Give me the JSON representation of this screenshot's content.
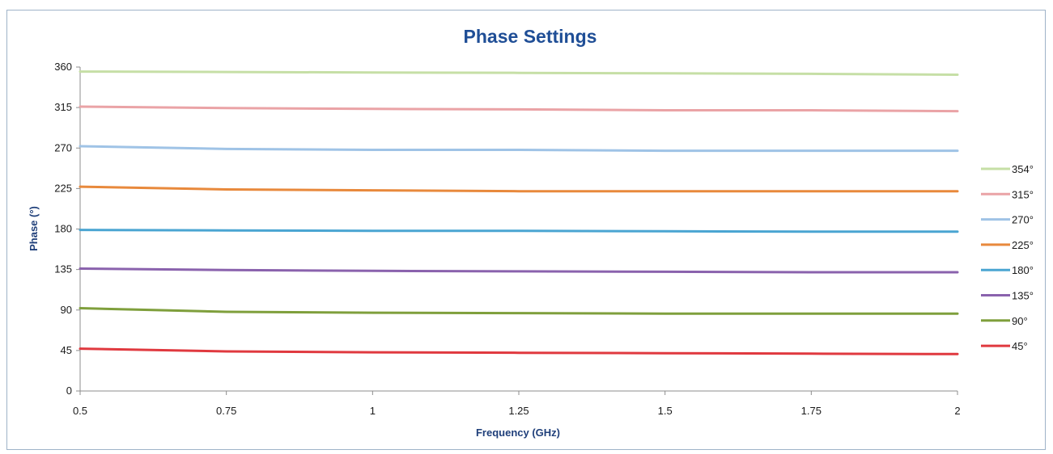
{
  "chart_data": {
    "type": "line",
    "title": "Phase Settings",
    "xlabel": "Frequency (GHz)",
    "ylabel": "Phase (°)",
    "xlim": [
      0.5,
      2
    ],
    "ylim": [
      0,
      360
    ],
    "x_ticks": [
      "0.5",
      "0.75",
      "1",
      "1.25",
      "1.5",
      "1.75",
      "2"
    ],
    "y_ticks": [
      "0",
      "45",
      "90",
      "135",
      "180",
      "225",
      "270",
      "315",
      "360"
    ],
    "grid": false,
    "legend_position": "right",
    "x": [
      0.5,
      0.75,
      1.0,
      1.25,
      1.5,
      1.75,
      2.0
    ],
    "series": [
      {
        "name": "354°",
        "color": "#c6dfa6",
        "values": [
          355,
          354.5,
          354,
          353.5,
          353,
          352.5,
          351.5
        ]
      },
      {
        "name": "315°",
        "color": "#eaa3a6",
        "values": [
          316,
          314.5,
          313.5,
          313,
          312,
          312,
          311
        ]
      },
      {
        "name": "270°",
        "color": "#9fc3e6",
        "values": [
          272,
          269,
          268,
          268,
          267,
          267,
          267
        ]
      },
      {
        "name": "225°",
        "color": "#e8893c",
        "values": [
          227,
          224,
          223,
          222,
          222,
          222,
          222
        ]
      },
      {
        "name": "180°",
        "color": "#4aa5d2",
        "values": [
          179,
          178.5,
          178,
          178,
          177.5,
          177,
          177
        ]
      },
      {
        "name": "135°",
        "color": "#8a62ad",
        "values": [
          136,
          134.5,
          133.5,
          133,
          132.5,
          132,
          132
        ]
      },
      {
        "name": "90°",
        "color": "#7f9f3c",
        "values": [
          92,
          88,
          87,
          86.5,
          86,
          86,
          86
        ]
      },
      {
        "name": "45°",
        "color": "#e0393f",
        "values": [
          47,
          44,
          43,
          42.5,
          42,
          41.5,
          41
        ]
      }
    ]
  }
}
